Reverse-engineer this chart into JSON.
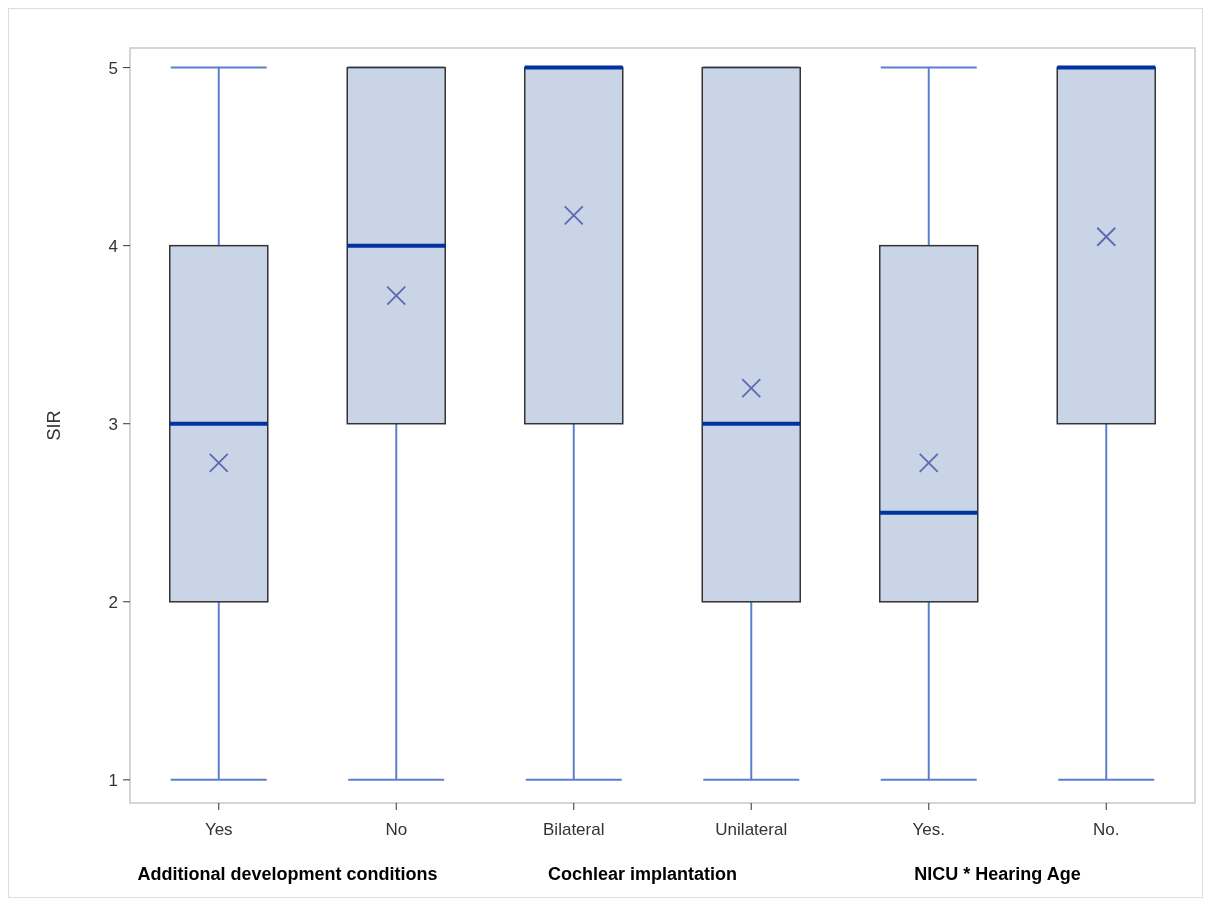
{
  "chart_data": {
    "type": "box",
    "ylabel": "SIR",
    "categories": [
      "Yes",
      "No",
      "Bilateral",
      "Unilateral",
      "Yes.",
      "No."
    ],
    "series": [
      {
        "color": "#c9d5e6",
        "boxes": [
          {
            "low": 1,
            "q1": 2,
            "median": 3,
            "q3": 4,
            "high": 5,
            "mean": 2.78
          },
          {
            "low": 1,
            "q1": 3,
            "median": 4,
            "q3": 5,
            "high": 5,
            "mean": 3.72
          },
          {
            "low": 1,
            "q1": 3,
            "median": 5,
            "q3": 5,
            "high": 5,
            "mean": 4.17
          },
          {
            "low": 1,
            "q1": 2,
            "median": 3,
            "q3": 5,
            "high": 5,
            "mean": 3.2
          },
          {
            "low": 1,
            "q1": 2,
            "median": 2.5,
            "q3": 4,
            "high": 5,
            "mean": 2.78
          },
          {
            "low": 1,
            "q1": 3,
            "median": 5,
            "q3": 5,
            "high": 5,
            "mean": 4.05
          }
        ]
      }
    ],
    "ylim": [
      0.87,
      5.11
    ],
    "yticks": [
      1,
      2,
      3,
      4,
      5
    ],
    "annotations": [
      "Additional development conditions",
      "Cochlear implantation",
      "NICU * Hearing Age"
    ]
  }
}
